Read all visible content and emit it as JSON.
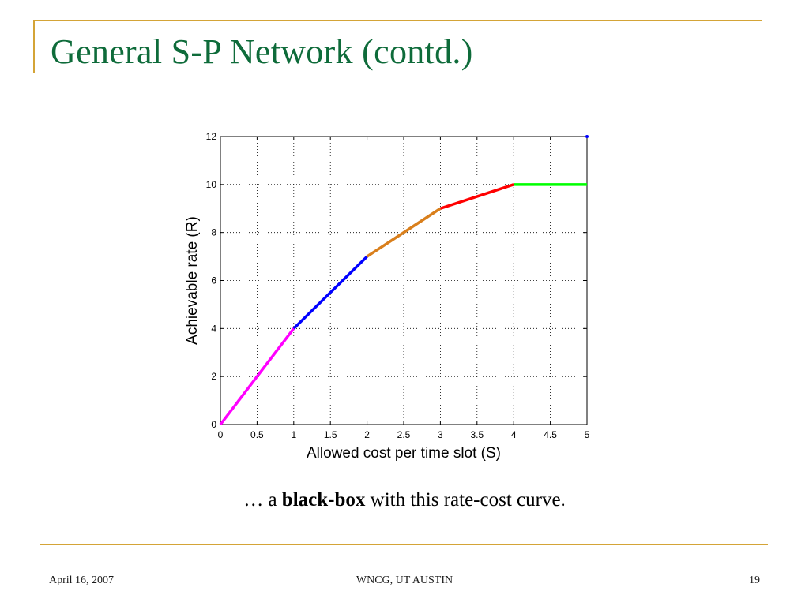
{
  "slide": {
    "title": "General S-P Network (contd.)",
    "caption_prefix": "… a ",
    "caption_bold": "black-box",
    "caption_suffix": " with this rate-cost curve.",
    "footer_date": "April 16, 2007",
    "footer_center": "WNCG, UT AUSTIN",
    "footer_page": "19"
  },
  "colors": {
    "title": "#0E6B3A",
    "rule": "#D4A437",
    "segment_colors": [
      "#FF00FF",
      "#0000FF",
      "#D97F1C",
      "#FF0000",
      "#00FF00"
    ]
  },
  "chart_data": {
    "type": "line",
    "title": "",
    "xlabel": "Allowed cost per time slot (S)",
    "ylabel": "Achievable rate (R)",
    "xlim": [
      0,
      5
    ],
    "ylim": [
      0,
      12
    ],
    "xticks": [
      0,
      0.5,
      1,
      1.5,
      2,
      2.5,
      3,
      3.5,
      4,
      4.5,
      5
    ],
    "xtick_labels": [
      "0",
      "0.5",
      "1",
      "1.5",
      "2",
      "2.5",
      "3",
      "3.5",
      "4",
      "4.5",
      "5"
    ],
    "yticks": [
      0,
      2,
      4,
      6,
      8,
      10,
      12
    ],
    "ytick_labels": [
      "0",
      "2",
      "4",
      "6",
      "8",
      "10",
      "12"
    ],
    "grid": true,
    "series": [
      {
        "x": [
          0,
          1
        ],
        "y": [
          0,
          4
        ],
        "color": "#FF00FF"
      },
      {
        "x": [
          1,
          2
        ],
        "y": [
          4,
          7
        ],
        "color": "#0000FF"
      },
      {
        "x": [
          2,
          3
        ],
        "y": [
          7,
          9
        ],
        "color": "#D97F1C"
      },
      {
        "x": [
          3,
          4
        ],
        "y": [
          9,
          10
        ],
        "color": "#FF0000"
      },
      {
        "x": [
          4,
          5
        ],
        "y": [
          10,
          10
        ],
        "color": "#00FF00"
      }
    ],
    "marker_point": {
      "x": 5,
      "y": 12,
      "color": "#0000FF"
    }
  }
}
